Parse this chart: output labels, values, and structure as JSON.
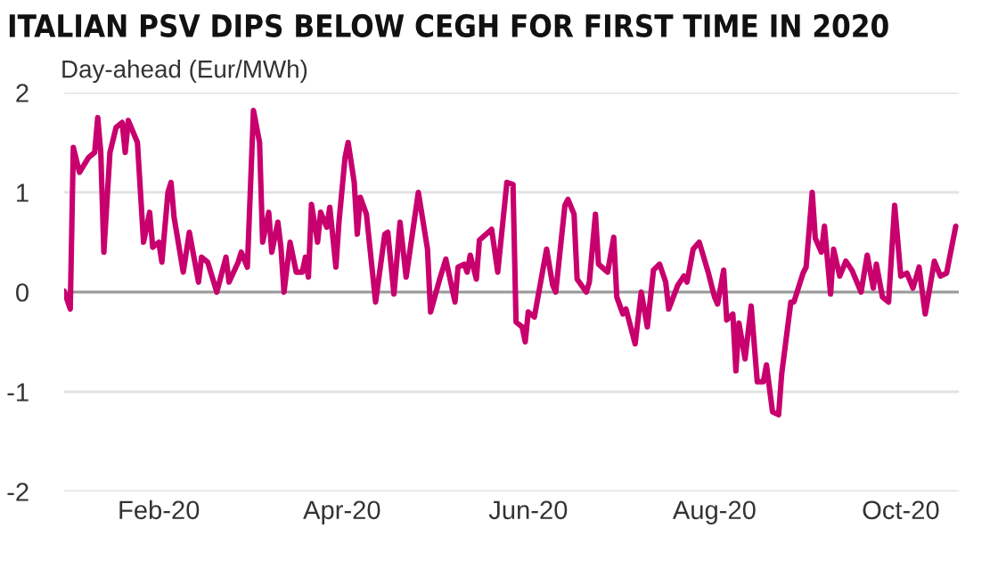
{
  "chart_data": {
    "type": "line",
    "title": "ITALIAN PSV DIPS BELOW CEGH FOR FIRST TIME IN 2020",
    "ylabel": "Day-ahead (Eur/MWh)",
    "x": [
      "2020-01-01",
      "2020-01-03",
      "2020-01-04",
      "2020-01-06",
      "2020-01-09",
      "2020-01-11",
      "2020-01-12",
      "2020-01-13",
      "2020-01-14",
      "2020-01-16",
      "2020-01-18",
      "2020-01-20",
      "2020-01-21",
      "2020-01-22",
      "2020-01-25",
      "2020-01-27",
      "2020-01-29",
      "2020-01-30",
      "2020-02-01",
      "2020-02-02",
      "2020-02-04",
      "2020-02-05",
      "2020-02-06",
      "2020-02-09",
      "2020-02-11",
      "2020-02-14",
      "2020-02-15",
      "2020-02-17",
      "2020-02-20",
      "2020-02-23",
      "2020-02-24",
      "2020-02-27",
      "2020-02-28",
      "2020-03-01",
      "2020-03-03",
      "2020-03-05",
      "2020-03-06",
      "2020-03-08",
      "2020-03-09",
      "2020-03-11",
      "2020-03-12",
      "2020-03-13",
      "2020-03-15",
      "2020-03-17",
      "2020-03-19",
      "2020-03-20",
      "2020-03-21",
      "2020-03-22",
      "2020-03-24",
      "2020-03-25",
      "2020-03-27",
      "2020-03-28",
      "2020-03-30",
      "2020-03-31",
      "2020-04-02",
      "2020-04-03",
      "2020-04-05",
      "2020-04-06",
      "2020-04-07",
      "2020-04-09",
      "2020-04-12",
      "2020-04-15",
      "2020-04-16",
      "2020-04-18",
      "2020-04-20",
      "2020-04-22",
      "2020-04-26",
      "2020-04-29",
      "2020-04-30",
      "2020-05-03",
      "2020-05-05",
      "2020-05-08",
      "2020-05-09",
      "2020-05-11",
      "2020-05-12",
      "2020-05-13",
      "2020-05-15",
      "2020-05-16",
      "2020-05-20",
      "2020-05-22",
      "2020-05-25",
      "2020-05-27",
      "2020-05-28",
      "2020-05-30",
      "2020-05-31",
      "2020-06-01",
      "2020-06-03",
      "2020-06-07",
      "2020-06-09",
      "2020-06-10",
      "2020-06-13",
      "2020-06-14",
      "2020-06-16",
      "2020-06-17",
      "2020-06-20",
      "2020-06-21",
      "2020-06-23",
      "2020-06-24",
      "2020-06-27",
      "2020-06-29",
      "2020-06-30",
      "2020-07-02",
      "2020-07-03",
      "2020-07-06",
      "2020-07-08",
      "2020-07-10",
      "2020-07-12",
      "2020-07-14",
      "2020-07-16",
      "2020-07-17",
      "2020-07-20",
      "2020-07-22",
      "2020-07-23",
      "2020-07-25",
      "2020-07-27",
      "2020-07-30",
      "2020-08-01",
      "2020-08-02",
      "2020-08-04",
      "2020-08-05",
      "2020-08-07",
      "2020-08-08",
      "2020-08-09",
      "2020-08-11",
      "2020-08-13",
      "2020-08-15",
      "2020-08-17",
      "2020-08-18",
      "2020-08-20",
      "2020-08-22",
      "2020-08-23",
      "2020-08-26",
      "2020-08-27",
      "2020-08-30",
      "2020-08-31",
      "2020-09-02",
      "2020-09-03",
      "2020-09-05",
      "2020-09-06",
      "2020-09-08",
      "2020-09-09",
      "2020-09-11",
      "2020-09-13",
      "2020-09-15",
      "2020-09-18",
      "2020-09-20",
      "2020-09-22",
      "2020-09-23",
      "2020-09-25",
      "2020-09-27",
      "2020-09-29",
      "2020-10-01",
      "2020-10-03",
      "2020-10-05",
      "2020-10-07",
      "2020-10-09",
      "2020-10-12",
      "2020-10-14",
      "2020-10-16",
      "2020-10-19"
    ],
    "series": [
      {
        "color": "#c8006e",
        "values": [
          0.01,
          -0.17,
          1.45,
          1.2,
          1.35,
          1.4,
          1.75,
          1.4,
          0.4,
          1.4,
          1.65,
          1.7,
          1.4,
          1.72,
          1.5,
          0.5,
          0.8,
          0.45,
          0.5,
          0.3,
          1.0,
          1.1,
          0.75,
          0.2,
          0.6,
          0.1,
          0.35,
          0.3,
          0.0,
          0.35,
          0.1,
          0.3,
          0.4,
          0.25,
          1.82,
          1.5,
          0.5,
          0.8,
          0.4,
          0.7,
          0.45,
          0.0,
          0.5,
          0.2,
          0.2,
          0.35,
          0.15,
          0.88,
          0.5,
          0.8,
          0.65,
          0.85,
          0.25,
          0.7,
          1.35,
          1.5,
          1.1,
          0.58,
          0.95,
          0.78,
          -0.1,
          0.58,
          0.6,
          -0.02,
          0.7,
          0.15,
          1.0,
          0.43,
          -0.2,
          0.13,
          0.33,
          -0.1,
          0.25,
          0.28,
          0.2,
          0.37,
          0.13,
          0.52,
          0.63,
          0.2,
          1.1,
          1.08,
          -0.3,
          -0.35,
          -0.5,
          -0.2,
          -0.25,
          0.43,
          0.07,
          0.0,
          0.87,
          0.93,
          0.78,
          0.13,
          0.0,
          0.1,
          0.78,
          0.28,
          0.2,
          0.55,
          -0.05,
          -0.22,
          -0.17,
          -0.52,
          0.0,
          -0.35,
          0.22,
          0.28,
          0.1,
          -0.17,
          0.07,
          0.16,
          0.1,
          0.43,
          0.5,
          0.19,
          -0.05,
          -0.12,
          0.22,
          -0.28,
          -0.22,
          -0.79,
          -0.31,
          -0.67,
          -0.14,
          -0.9,
          -0.9,
          -0.73,
          -1.2,
          -1.23,
          -0.82,
          -0.1,
          -0.1,
          0.19,
          0.25,
          1.0,
          0.54,
          0.4,
          0.66,
          -0.02,
          0.43,
          0.16,
          0.31,
          0.22,
          0.0,
          0.37,
          0.04,
          0.28,
          -0.05,
          -0.1,
          0.87,
          0.16,
          0.19,
          0.04,
          0.25,
          -0.22,
          0.31,
          0.16,
          0.19,
          0.66
        ]
      }
    ],
    "xlim": [
      "2020-01-01",
      "2020-10-20"
    ],
    "xticks": [
      {
        "value": "2020-02-01",
        "label": "Feb-20"
      },
      {
        "value": "2020-04-01",
        "label": "Apr-20"
      },
      {
        "value": "2020-06-01",
        "label": "Jun-20"
      },
      {
        "value": "2020-08-01",
        "label": "Aug-20"
      },
      {
        "value": "2020-10-01",
        "label": "Oct-20"
      }
    ],
    "ylim": [
      -2,
      2
    ],
    "yticks": [
      -2,
      -1,
      0,
      1,
      2
    ],
    "grid": "y",
    "ref_lines": [
      {
        "axis": "y",
        "value": 0,
        "color": "#9a9a9a"
      }
    ],
    "marker": "none",
    "line_style": "solid",
    "legend": false
  }
}
